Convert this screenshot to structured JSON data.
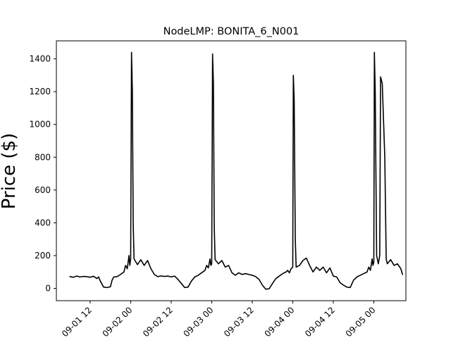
{
  "chart_data": {
    "type": "line",
    "title": "NodeLMP: BONITA_6_N001",
    "xlabel": "",
    "ylabel": "Price ($)",
    "grid": false,
    "legend": "none",
    "xlim": [
      "2023-09-01 02:00",
      "2023-09-05 09:30"
    ],
    "ylim": [
      -75,
      1510
    ],
    "x_ticks": [
      {
        "value": "2023-09-01 12:00",
        "label": "09-01 12"
      },
      {
        "value": "2023-09-02 00:00",
        "label": "09-02 00"
      },
      {
        "value": "2023-09-02 12:00",
        "label": "09-02 12"
      },
      {
        "value": "2023-09-03 00:00",
        "label": "09-03 00"
      },
      {
        "value": "2023-09-03 12:00",
        "label": "09-03 12"
      },
      {
        "value": "2023-09-04 00:00",
        "label": "09-04 00"
      },
      {
        "value": "2023-09-04 12:00",
        "label": "09-04 12"
      },
      {
        "value": "2023-09-05 00:00",
        "label": "09-05 00"
      }
    ],
    "y_ticks": [
      0,
      200,
      400,
      600,
      800,
      1000,
      1200,
      1400
    ],
    "series": [
      {
        "color": "#000000",
        "points": [
          [
            "2023-09-01 06:00",
            72
          ],
          [
            "2023-09-01 07:00",
            68
          ],
          [
            "2023-09-01 08:00",
            75
          ],
          [
            "2023-09-01 09:00",
            70
          ],
          [
            "2023-09-01 10:00",
            73
          ],
          [
            "2023-09-01 11:00",
            72
          ],
          [
            "2023-09-01 12:00",
            68
          ],
          [
            "2023-09-01 13:00",
            74
          ],
          [
            "2023-09-01 14:00",
            60
          ],
          [
            "2023-09-01 14:30",
            70
          ],
          [
            "2023-09-01 15:00",
            45
          ],
          [
            "2023-09-01 16:00",
            8
          ],
          [
            "2023-09-01 17:00",
            5
          ],
          [
            "2023-09-01 18:00",
            10
          ],
          [
            "2023-09-01 18:30",
            50
          ],
          [
            "2023-09-01 19:00",
            70
          ],
          [
            "2023-09-01 20:00",
            72
          ],
          [
            "2023-09-01 21:00",
            85
          ],
          [
            "2023-09-01 22:00",
            100
          ],
          [
            "2023-09-01 22:30",
            140
          ],
          [
            "2023-09-01 23:00",
            120
          ],
          [
            "2023-09-01 23:30",
            200
          ],
          [
            "2023-09-01 23:45",
            140
          ],
          [
            "2023-09-02 00:00",
            180
          ],
          [
            "2023-09-02 00:15",
            1440
          ],
          [
            "2023-09-02 00:30",
            1200
          ],
          [
            "2023-09-02 00:45",
            400
          ],
          [
            "2023-09-02 01:00",
            180
          ],
          [
            "2023-09-02 02:00",
            145
          ],
          [
            "2023-09-02 03:00",
            175
          ],
          [
            "2023-09-02 04:00",
            140
          ],
          [
            "2023-09-02 05:00",
            170
          ],
          [
            "2023-09-02 06:00",
            120
          ],
          [
            "2023-09-02 07:00",
            85
          ],
          [
            "2023-09-02 08:00",
            72
          ],
          [
            "2023-09-02 09:00",
            76
          ],
          [
            "2023-09-02 10:00",
            73
          ],
          [
            "2023-09-02 11:00",
            75
          ],
          [
            "2023-09-02 12:00",
            70
          ],
          [
            "2023-09-02 13:00",
            75
          ],
          [
            "2023-09-02 14:00",
            55
          ],
          [
            "2023-09-02 15:00",
            30
          ],
          [
            "2023-09-02 16:00",
            5
          ],
          [
            "2023-09-02 17:00",
            8
          ],
          [
            "2023-09-02 18:00",
            45
          ],
          [
            "2023-09-02 19:00",
            70
          ],
          [
            "2023-09-02 20:00",
            80
          ],
          [
            "2023-09-02 21:00",
            95
          ],
          [
            "2023-09-02 22:00",
            110
          ],
          [
            "2023-09-02 22:30",
            140
          ],
          [
            "2023-09-02 23:00",
            125
          ],
          [
            "2023-09-02 23:30",
            180
          ],
          [
            "2023-09-02 23:45",
            140
          ],
          [
            "2023-09-03 00:00",
            150
          ],
          [
            "2023-09-03 00:15",
            1430
          ],
          [
            "2023-09-03 00:30",
            1250
          ],
          [
            "2023-09-03 00:45",
            380
          ],
          [
            "2023-09-03 01:00",
            175
          ],
          [
            "2023-09-03 02:00",
            150
          ],
          [
            "2023-09-03 03:00",
            170
          ],
          [
            "2023-09-03 04:00",
            130
          ],
          [
            "2023-09-03 05:00",
            140
          ],
          [
            "2023-09-03 06:00",
            95
          ],
          [
            "2023-09-03 07:00",
            80
          ],
          [
            "2023-09-03 08:00",
            95
          ],
          [
            "2023-09-03 09:00",
            85
          ],
          [
            "2023-09-03 10:00",
            90
          ],
          [
            "2023-09-03 11:00",
            85
          ],
          [
            "2023-09-03 12:00",
            80
          ],
          [
            "2023-09-03 13:00",
            72
          ],
          [
            "2023-09-03 14:00",
            55
          ],
          [
            "2023-09-03 15:00",
            20
          ],
          [
            "2023-09-03 16:00",
            -5
          ],
          [
            "2023-09-03 17:00",
            -2
          ],
          [
            "2023-09-03 18:00",
            30
          ],
          [
            "2023-09-03 19:00",
            60
          ],
          [
            "2023-09-03 20:00",
            75
          ],
          [
            "2023-09-03 21:00",
            90
          ],
          [
            "2023-09-03 22:00",
            100
          ],
          [
            "2023-09-03 22:30",
            110
          ],
          [
            "2023-09-03 23:00",
            95
          ],
          [
            "2023-09-03 23:30",
            120
          ],
          [
            "2023-09-04 00:00",
            130
          ],
          [
            "2023-09-04 00:10",
            1300
          ],
          [
            "2023-09-04 00:25",
            1150
          ],
          [
            "2023-09-04 00:45",
            300
          ],
          [
            "2023-09-04 01:00",
            130
          ],
          [
            "2023-09-04 02:00",
            140
          ],
          [
            "2023-09-04 03:00",
            170
          ],
          [
            "2023-09-04 04:00",
            185
          ],
          [
            "2023-09-04 05:00",
            140
          ],
          [
            "2023-09-04 06:00",
            100
          ],
          [
            "2023-09-04 07:00",
            130
          ],
          [
            "2023-09-04 08:00",
            110
          ],
          [
            "2023-09-04 09:00",
            130
          ],
          [
            "2023-09-04 10:00",
            95
          ],
          [
            "2023-09-04 11:00",
            125
          ],
          [
            "2023-09-04 12:00",
            75
          ],
          [
            "2023-09-04 13:00",
            70
          ],
          [
            "2023-09-04 14:00",
            35
          ],
          [
            "2023-09-04 15:00",
            20
          ],
          [
            "2023-09-04 16:00",
            8
          ],
          [
            "2023-09-04 17:00",
            5
          ],
          [
            "2023-09-04 18:00",
            50
          ],
          [
            "2023-09-04 19:00",
            70
          ],
          [
            "2023-09-04 20:00",
            80
          ],
          [
            "2023-09-04 21:00",
            90
          ],
          [
            "2023-09-04 22:00",
            100
          ],
          [
            "2023-09-04 22:30",
            130
          ],
          [
            "2023-09-04 23:00",
            110
          ],
          [
            "2023-09-04 23:30",
            180
          ],
          [
            "2023-09-04 23:45",
            140
          ],
          [
            "2023-09-05 00:00",
            160
          ],
          [
            "2023-09-05 00:10",
            1440
          ],
          [
            "2023-09-05 00:25",
            1200
          ],
          [
            "2023-09-05 00:50",
            200
          ],
          [
            "2023-09-05 01:20",
            150
          ],
          [
            "2023-09-05 01:45",
            200
          ],
          [
            "2023-09-05 02:00",
            1290
          ],
          [
            "2023-09-05 02:30",
            1250
          ],
          [
            "2023-09-05 03:15",
            800
          ],
          [
            "2023-09-05 03:40",
            180
          ],
          [
            "2023-09-05 04:00",
            150
          ],
          [
            "2023-09-05 05:00",
            175
          ],
          [
            "2023-09-05 06:00",
            140
          ],
          [
            "2023-09-05 07:00",
            150
          ],
          [
            "2023-09-05 08:00",
            120
          ],
          [
            "2023-09-05 08:30",
            85
          ]
        ]
      }
    ]
  }
}
